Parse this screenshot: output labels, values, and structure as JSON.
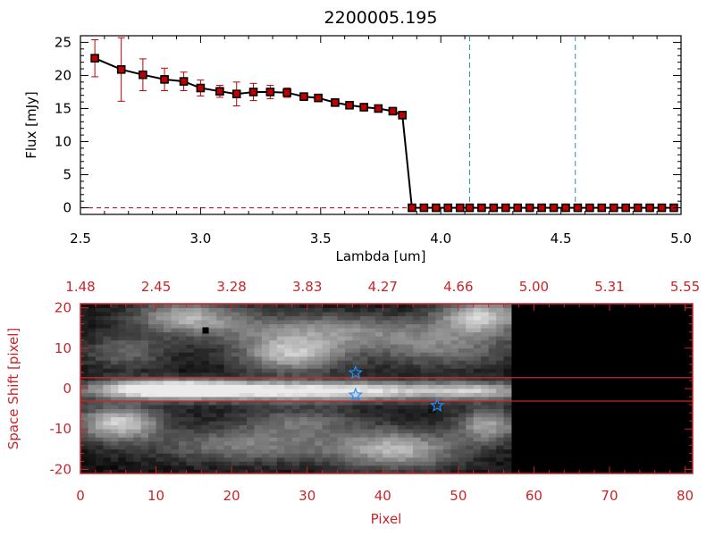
{
  "chart_data": [
    {
      "type": "line",
      "title": "2200005.195",
      "xlabel": "Lambda [um]",
      "ylabel": "Flux [mJy]",
      "xlim": [
        2.5,
        5.0
      ],
      "ylim": [
        -1,
        26
      ],
      "x_ticks": [
        "2.5",
        "3.0",
        "3.5",
        "4.0",
        "4.5",
        "5.0"
      ],
      "y_ticks": [
        "0",
        "5",
        "10",
        "15",
        "20",
        "25"
      ],
      "vertical_dashed_lines": [
        4.12,
        4.56
      ],
      "zero_line": "dashed red",
      "series": [
        {
          "x": [
            2.56,
            2.67,
            2.76,
            2.85,
            2.93,
            3.0,
            3.08,
            3.15,
            3.22,
            3.29,
            3.36,
            3.43,
            3.49,
            3.56,
            3.62,
            3.68,
            3.74,
            3.8,
            3.84,
            3.88,
            3.93,
            3.98,
            4.03,
            4.08,
            4.12,
            4.17,
            4.22,
            4.27,
            4.32,
            4.37,
            4.42,
            4.47,
            4.52,
            4.57,
            4.62,
            4.67,
            4.72,
            4.77,
            4.82,
            4.87,
            4.92,
            4.97
          ],
          "y": [
            22.6,
            20.9,
            20.1,
            19.4,
            19.1,
            18.1,
            17.6,
            17.2,
            17.5,
            17.5,
            17.4,
            16.8,
            16.6,
            15.9,
            15.5,
            15.2,
            15.0,
            14.6,
            14.0,
            0,
            0,
            0,
            0,
            0,
            0,
            0,
            0,
            0,
            0,
            0,
            0,
            0,
            0,
            0,
            0,
            0,
            0,
            0,
            0,
            0,
            0,
            0
          ],
          "yerr": [
            2.8,
            4.8,
            2.4,
            1.7,
            1.4,
            1.2,
            0.9,
            1.8,
            1.3,
            1.0,
            0.7,
            0.4,
            0.3,
            0.2,
            0.2,
            0.2,
            0.2,
            0.3,
            0.3,
            0,
            0,
            0,
            0,
            0,
            0,
            0,
            0,
            0,
            0,
            0,
            0,
            0,
            0,
            0,
            0,
            0,
            0,
            0,
            0,
            0,
            0,
            0
          ]
        }
      ],
      "colors": {
        "line": "#000000",
        "marker": "#c00000",
        "errorbar": "#c00000",
        "vline": "#2a8fbd",
        "axes": "#000000"
      }
    },
    {
      "type": "heatmap",
      "xlabel": "Pixel",
      "ylabel": "Space Shift [pixel]",
      "xlim": [
        0,
        81
      ],
      "ylim": [
        -21,
        21
      ],
      "x_ticks": [
        "0",
        "10",
        "20",
        "30",
        "40",
        "50",
        "60",
        "70",
        "80"
      ],
      "y_ticks": [
        "-20",
        "-10",
        "0",
        "10",
        "20"
      ],
      "top_x_ticks": [
        "1.48",
        "2.45",
        "3.28",
        "3.83",
        "4.27",
        "4.66",
        "5.00",
        "5.31",
        "5.55"
      ],
      "extraction_lines_y": [
        2.7,
        -3.1
      ],
      "data_extent_x": [
        0,
        57
      ],
      "stars": [
        {
          "x": 36.4,
          "y": 3.9
        },
        {
          "x": 36.4,
          "y": -1.6
        },
        {
          "x": 47.2,
          "y": -4.2
        }
      ],
      "blobs": [
        {
          "x": 11,
          "y": 0,
          "sx": 7,
          "sy": 1.6,
          "a": 0.95
        },
        {
          "x": 24,
          "y": -0.5,
          "sx": 12,
          "sy": 1.8,
          "a": 0.7
        },
        {
          "x": 40,
          "y": -0.5,
          "sx": 11,
          "sy": 1.7,
          "a": 0.55
        },
        {
          "x": 53,
          "y": -0.5,
          "sx": 5,
          "sy": 1.6,
          "a": 0.45
        },
        {
          "x": 5,
          "y": -8.5,
          "sx": 4,
          "sy": 3,
          "a": 0.8
        },
        {
          "x": 14,
          "y": 18,
          "sx": 5,
          "sy": 3,
          "a": 0.6
        },
        {
          "x": 28,
          "y": 8.5,
          "sx": 5,
          "sy": 3,
          "a": 0.7
        },
        {
          "x": 32,
          "y": 14.5,
          "sx": 11,
          "sy": 3,
          "a": 0.5
        },
        {
          "x": 53,
          "y": 18,
          "sx": 4,
          "sy": 3,
          "a": 0.75
        },
        {
          "x": 48,
          "y": 10,
          "sx": 7,
          "sy": 3.5,
          "a": 0.4
        },
        {
          "x": 22,
          "y": -14,
          "sx": 9,
          "sy": 3,
          "a": 0.45
        },
        {
          "x": 42,
          "y": -15,
          "sx": 6,
          "sy": 3.5,
          "a": 0.65
        },
        {
          "x": 54,
          "y": -9,
          "sx": 3,
          "sy": 3,
          "a": 0.6
        },
        {
          "x": 29,
          "y": -8,
          "sx": 6,
          "sy": 2.5,
          "a": 0.35
        },
        {
          "x": 6,
          "y": 9,
          "sx": 4,
          "sy": 3,
          "a": 0.35
        }
      ],
      "black_pixel": {
        "x": 16.5,
        "y": 14.5
      },
      "colors": {
        "axes": "#c8252b",
        "lines": "#c8252b",
        "stars": "#1e90ff"
      }
    }
  ]
}
